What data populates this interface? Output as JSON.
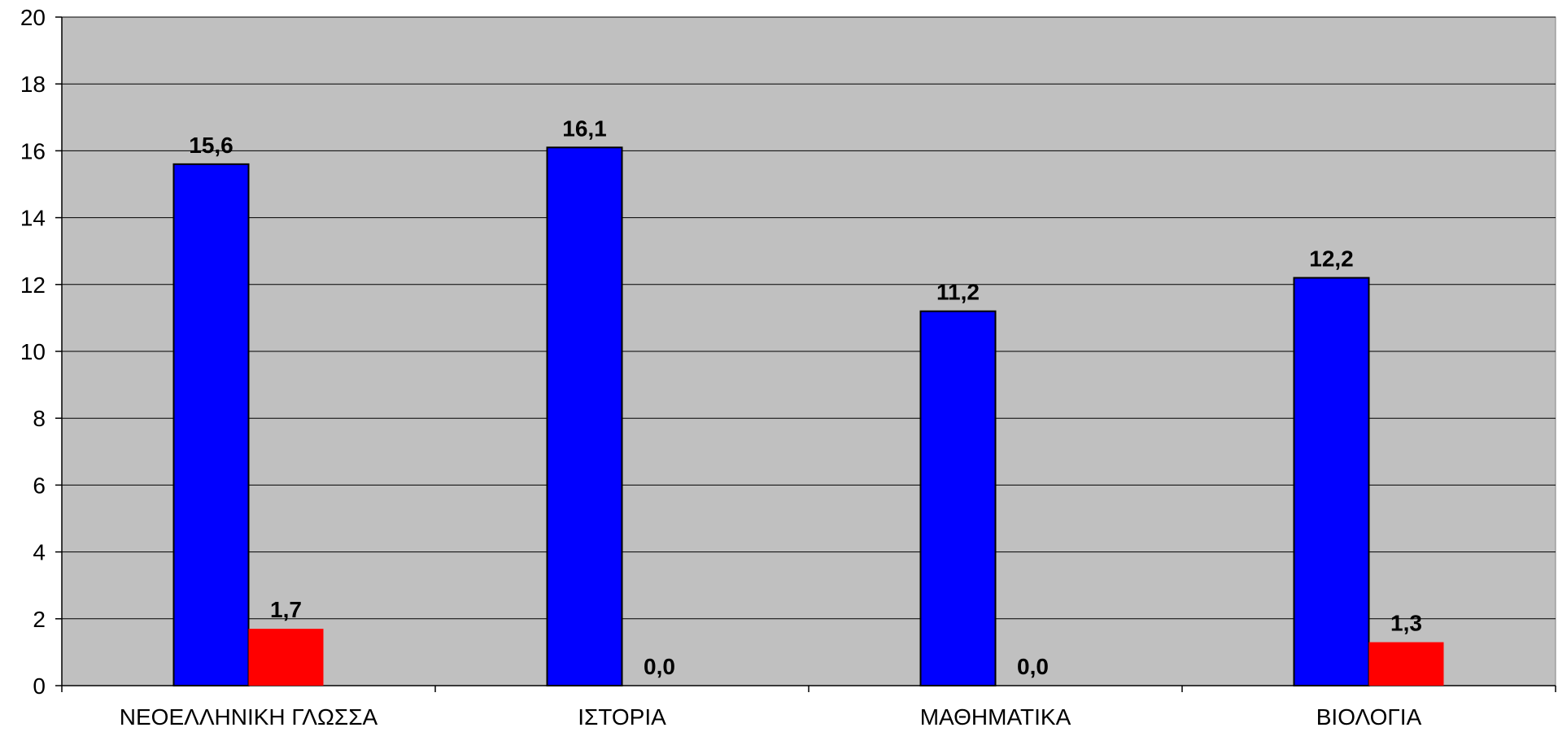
{
  "chart_data": {
    "type": "bar",
    "categories": [
      "ΝΕΟΕΛΛΗΝΙΚΗ ΓΛΩΣΣΑ",
      "ΙΣΤΟΡΙΑ",
      "ΜΑΘΗΜΑΤΙΚΑ",
      "ΒΙΟΛΟΓΙΑ"
    ],
    "series": [
      {
        "color": "#0000ff",
        "values": [
          15.6,
          16.1,
          11.2,
          12.2
        ],
        "labels": [
          "15,6",
          "16,1",
          "11,2",
          "12,2"
        ]
      },
      {
        "color": "#ff0000",
        "values": [
          1.7,
          0.0,
          0.0,
          1.3
        ],
        "labels": [
          "1,7",
          "0,0",
          "0,0",
          "1,3"
        ]
      }
    ],
    "ylim": [
      0,
      20
    ],
    "yticks": [
      "0",
      "2",
      "4",
      "6",
      "8",
      "10",
      "12",
      "14",
      "16",
      "18",
      "20"
    ],
    "grid": true,
    "plot_background": "#c0c0c0",
    "gridline_color": "#000000"
  }
}
